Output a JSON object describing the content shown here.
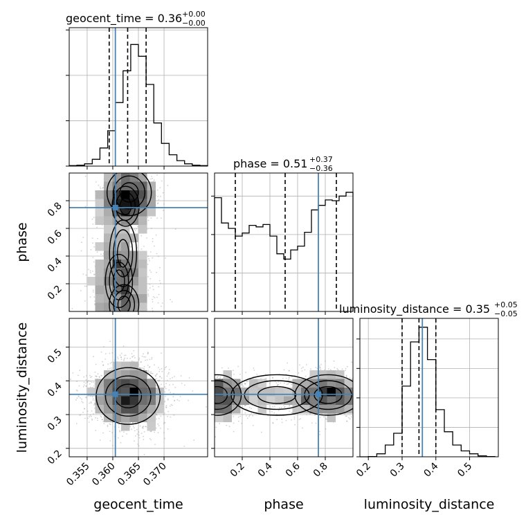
{
  "chart_data": {
    "type": "corner",
    "parameters": [
      "geocent_time",
      "phase",
      "luminosity_distance"
    ],
    "axis_labels": {
      "x": [
        "geocent_time",
        "phase",
        "luminosity_distance"
      ],
      "y": [
        "phase",
        "luminosity_distance"
      ]
    },
    "ranges": {
      "geocent_time": [
        0.3515,
        0.3785
      ],
      "phase": [
        0.0,
        1.0
      ],
      "luminosity_distance": [
        0.175,
        0.585
      ]
    },
    "truths": {
      "geocent_time": 0.3605,
      "phase": 0.75,
      "luminosity_distance": 0.36
    },
    "titles": [
      {
        "param": "geocent_time",
        "prefix": "geocent_time = ",
        "value": "0.36",
        "plus": "+0.00",
        "minus": "−0.00"
      },
      {
        "param": "phase",
        "prefix": "phase = ",
        "value": "0.51",
        "plus": "+0.37",
        "minus": "−0.36"
      },
      {
        "param": "luminosity_distance",
        "prefix": "luminosity_distance = ",
        "value": "0.35",
        "plus": "+0.05",
        "minus": "−0.05"
      }
    ],
    "marginals": {
      "geocent_time": {
        "edges": [
          0.3515,
          0.353,
          0.3545,
          0.356,
          0.3575,
          0.359,
          0.3605,
          0.362,
          0.3635,
          0.365,
          0.3665,
          0.368,
          0.3695,
          0.371,
          0.3725,
          0.374,
          0.3755,
          0.377,
          0.3785
        ],
        "counts": [
          1,
          2,
          5,
          15,
          40,
          78,
          140,
          210,
          268,
          242,
          180,
          95,
          50,
          25,
          12,
          5,
          2,
          1
        ],
        "ymax": 305,
        "yticks": [
          0,
          100,
          200,
          300
        ],
        "quantiles": [
          0.3593,
          0.3629,
          0.3665
        ]
      },
      "phase": {
        "edges": [
          0.0,
          0.05,
          0.1,
          0.15,
          0.2,
          0.25,
          0.3,
          0.35,
          0.4,
          0.45,
          0.5,
          0.55,
          0.6,
          0.65,
          0.7,
          0.75,
          0.8,
          0.85,
          0.9,
          0.95,
          1.0
        ],
        "counts": [
          148,
          115,
          108,
          98,
          102,
          112,
          110,
          113,
          98,
          75,
          68,
          80,
          85,
          103,
          132,
          138,
          145,
          144,
          150,
          155
        ],
        "ymax": 180,
        "yticks": [
          0,
          50,
          100,
          150
        ],
        "quantiles": [
          0.15,
          0.51,
          0.88
        ]
      },
      "luminosity_distance": {
        "edges": [
          0.175,
          0.2,
          0.225,
          0.25,
          0.275,
          0.3,
          0.325,
          0.35,
          0.375,
          0.4,
          0.425,
          0.45,
          0.475,
          0.5,
          0.525,
          0.55,
          0.575
        ],
        "counts": [
          0,
          1,
          10,
          40,
          80,
          240,
          390,
          440,
          330,
          160,
          85,
          40,
          20,
          10,
          3,
          1
        ],
        "ymax": 470,
        "yticks": [
          0,
          100,
          200,
          300,
          400
        ],
        "quantiles": [
          0.3,
          0.35,
          0.4
        ]
      }
    },
    "ticks": {
      "geocent_time": [
        0.355,
        0.36,
        0.365,
        0.37
      ],
      "geocent_time_labels": [
        "0.355",
        "0.360",
        "0.365",
        "0.370"
      ],
      "phase": [
        0.2,
        0.4,
        0.6,
        0.8
      ],
      "phase_labels": [
        "0.2",
        "0.4",
        "0.6",
        "0.8"
      ],
      "luminosity_distance": [
        0.2,
        0.3,
        0.4,
        0.5
      ],
      "luminosity_distance_labels": [
        "0.2",
        "0.3",
        "0.4",
        "0.5"
      ]
    },
    "density": {
      "geocent_time_vs_phase": [
        {
          "x": 0.3632,
          "y": 0.86,
          "sx": 0.0018,
          "sy": 0.07,
          "w": 1.0
        },
        {
          "x": 0.3625,
          "y": 0.76,
          "sx": 0.002,
          "sy": 0.06,
          "w": 0.55
        },
        {
          "x": 0.362,
          "y": 0.42,
          "sx": 0.002,
          "sy": 0.1,
          "w": 0.55
        },
        {
          "x": 0.3612,
          "y": 0.22,
          "sx": 0.002,
          "sy": 0.08,
          "w": 0.55
        },
        {
          "x": 0.3622,
          "y": 0.05,
          "sx": 0.0024,
          "sy": 0.06,
          "w": 0.5
        }
      ],
      "geocent_time_vs_luminosity_distance": [
        {
          "x": 0.363,
          "y": 0.355,
          "sx": 0.0026,
          "sy": 0.035,
          "w": 1.0
        }
      ],
      "phase_vs_luminosity_distance": [
        {
          "x": 0.82,
          "y": 0.358,
          "sx": 0.1,
          "sy": 0.025,
          "w": 1.0
        },
        {
          "x": 0.02,
          "y": 0.358,
          "sx": 0.08,
          "sy": 0.025,
          "w": 0.9
        },
        {
          "x": 0.45,
          "y": 0.358,
          "sx": 0.25,
          "sy": 0.025,
          "w": 0.55
        }
      ]
    },
    "colors": {
      "truth": "#4682b4",
      "line": "#000000",
      "grid": "#b0b0b0",
      "scatter": "#9a9a9a"
    },
    "grid": true
  }
}
